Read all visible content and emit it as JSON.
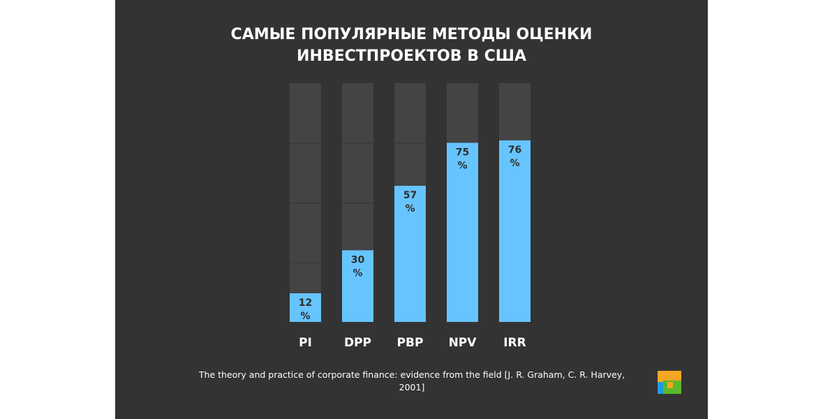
{
  "title_lines": [
    "САМЫЕ ПОПУЛЯРНЫЕ МЕТОДЫ ОЦЕНКИ",
    "ИНВЕСТПРОЕКТОВ В США"
  ],
  "source": "The theory and practice of corporate finance: evidence from the field [J. R. Graham, C. R. Harvey, 2001]",
  "colors": {
    "background": "#333333",
    "track": "#444444",
    "bar": "#66c4ff",
    "value_text": "#2d2d2d",
    "text": "#ffffff",
    "logo": [
      "#f5a623",
      "#5ab82c",
      "#1e9be3"
    ]
  },
  "chart_data": {
    "type": "bar",
    "title": "САМЫЕ ПОПУЛЯРНЫЕ МЕТОДЫ ОЦЕНКИ ИНВЕСТПРОЕКТОВ В США",
    "categories": [
      "PI",
      "DPP",
      "PBP",
      "NPV",
      "IRR"
    ],
    "values": [
      12,
      30,
      57,
      75,
      76
    ],
    "value_labels": [
      [
        "12",
        "%"
      ],
      [
        "30",
        "%"
      ],
      [
        "57",
        "%"
      ],
      [
        "75",
        "%"
      ],
      [
        "76",
        "%"
      ]
    ],
    "unit": "%",
    "ylim": [
      0,
      100
    ],
    "grid": false,
    "legend": "none"
  }
}
